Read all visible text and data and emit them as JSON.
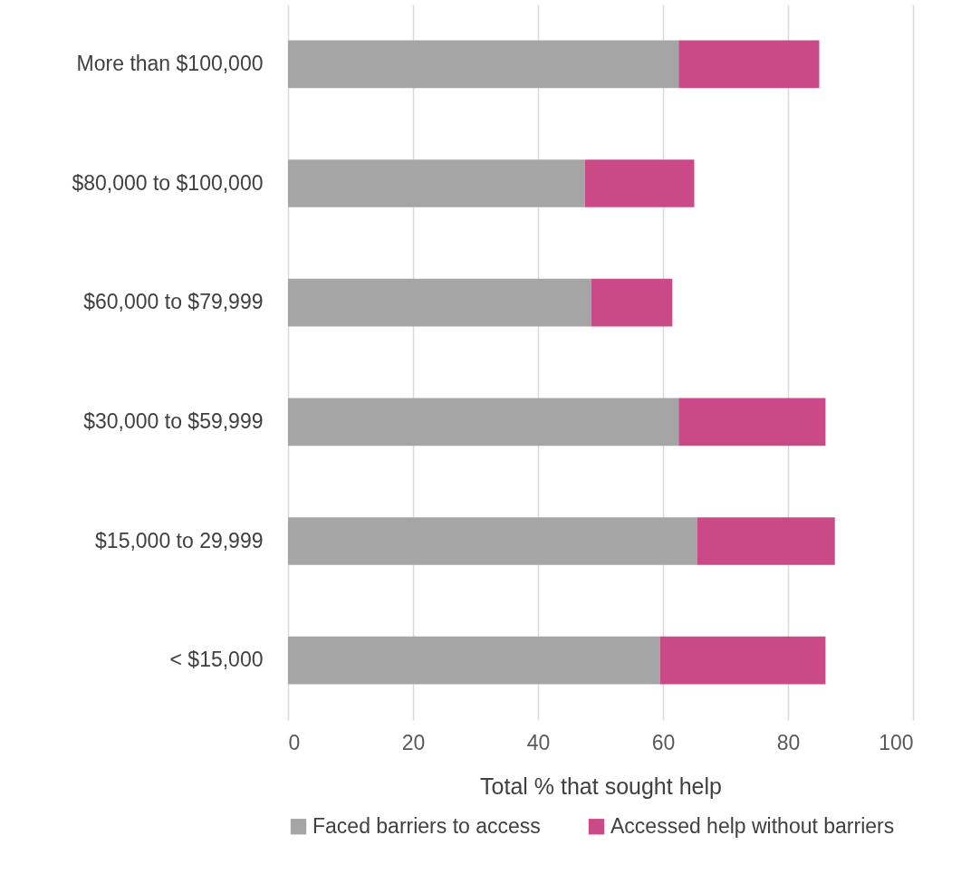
{
  "chart_data": {
    "type": "bar",
    "orientation": "horizontal",
    "stacked": true,
    "categories": [
      "More than $100,000",
      "$80,000 to $100,000",
      "$60,000 to $79,999",
      "$30,000 to $59,999",
      "$15,000 to 29,999",
      "< $15,000"
    ],
    "series": [
      {
        "name": "Faced barriers to access",
        "color": "#a5a5a5",
        "values": [
          62.5,
          47.5,
          48.5,
          62.5,
          65.5,
          59.5
        ]
      },
      {
        "name": "Accessed help without barriers",
        "color": "#c94a86",
        "values": [
          22.5,
          17.5,
          13,
          23.5,
          22,
          26.5
        ]
      }
    ],
    "xlabel": "Total % that sought help",
    "xlim": [
      0,
      100
    ],
    "xticks": [
      0,
      20,
      40,
      60,
      80,
      100
    ],
    "grid": "x",
    "legend": "bottom"
  }
}
